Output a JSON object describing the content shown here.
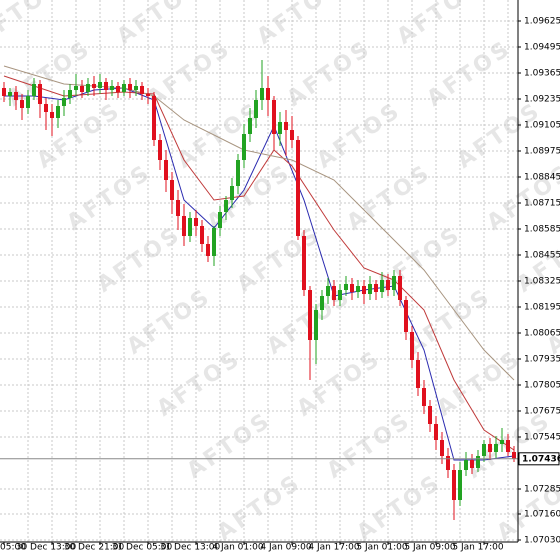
{
  "chart_data": {
    "type": "candlestick",
    "categories": [
      "05:00",
      null,
      null,
      null,
      null,
      null,
      null,
      null,
      "30 Dec 13:00",
      null,
      null,
      null,
      null,
      null,
      null,
      null,
      "30 Dec 21:00",
      null,
      null,
      null,
      null,
      null,
      null,
      null,
      "31 Dec 05:00",
      null,
      null,
      null,
      null,
      null,
      null,
      null,
      "31 Dec 13:00",
      null,
      null,
      null,
      null,
      null,
      null,
      null,
      "4 Jan 01:00",
      null,
      null,
      null,
      null,
      null,
      null,
      null,
      "4 Jan 09:00",
      null,
      null,
      null,
      null,
      null,
      null,
      null,
      "4 Jan 17:00",
      null,
      null,
      null,
      null,
      null,
      null,
      null,
      "5 Jan 01:00",
      null,
      null,
      null,
      null,
      null,
      null,
      null,
      "5 Jan 09:00",
      null,
      null,
      null,
      null,
      null,
      null,
      null,
      "5 Jan 17:00",
      null,
      null,
      null,
      null,
      null
    ],
    "open": [
      1.0929,
      1.0925,
      1.0927,
      1.0923,
      1.0919,
      1.0925,
      1.0931,
      1.0921,
      1.0917,
      1.0914,
      1.092,
      1.0924,
      1.0928,
      1.093,
      1.0927,
      1.0931,
      1.0929,
      1.0932,
      1.0928,
      1.093,
      1.0927,
      1.0931,
      1.0928,
      1.093,
      1.0926,
      1.0925,
      1.0903,
      1.0893,
      1.0883,
      1.0873,
      1.0865,
      1.0855,
      1.0864,
      1.086,
      1.0851,
      1.0845,
      1.0859,
      1.0867,
      1.0873,
      1.088,
      1.0893,
      1.0906,
      1.0914,
      1.0923,
      1.0929,
      1.0923,
      1.0906,
      1.0912,
      1.0908,
      1.0903,
      1.0855,
      1.0828,
      1.0803,
      1.0818,
      1.0825,
      1.083,
      1.0823,
      1.0828,
      1.0831,
      1.0827,
      1.083,
      1.0826,
      1.0831,
      1.0827,
      1.0833,
      1.0828,
      1.0835,
      1.0823,
      1.0807,
      1.0793,
      1.0779,
      1.077,
      1.0761,
      1.0753,
      1.0745,
      1.0738,
      1.0723,
      1.0738,
      1.0743,
      1.0739,
      1.0745,
      1.0751,
      1.0747,
      1.0751,
      1.0753,
      1.0747
    ],
    "high": [
      1.0932,
      1.0929,
      1.093,
      1.0926,
      1.0928,
      1.0934,
      1.0933,
      1.0924,
      1.0921,
      1.0923,
      1.0928,
      1.0931,
      1.0936,
      1.0933,
      1.0934,
      1.0935,
      1.0936,
      1.0934,
      1.0933,
      1.0932,
      1.0933,
      1.0934,
      1.0933,
      1.0932,
      1.0929,
      1.0927,
      1.0906,
      1.0898,
      1.0887,
      1.0878,
      1.0871,
      1.0867,
      1.0868,
      1.0863,
      1.0855,
      1.086,
      1.087,
      1.0875,
      1.0884,
      1.0896,
      1.0911,
      1.0919,
      1.0928,
      1.0943,
      1.0935,
      1.0925,
      1.0917,
      1.0918,
      1.0915,
      1.0905,
      1.0858,
      1.083,
      1.0821,
      1.0828,
      1.0834,
      1.0833,
      1.0831,
      1.0835,
      1.0834,
      1.0833,
      1.0833,
      1.0835,
      1.0833,
      1.0837,
      1.0836,
      1.0838,
      1.0838,
      1.0825,
      1.081,
      1.0797,
      1.0783,
      1.0773,
      1.0765,
      1.0757,
      1.0749,
      1.0741,
      1.0742,
      1.0747,
      1.0746,
      1.0748,
      1.0753,
      1.0754,
      1.0755,
      1.0759,
      1.0756,
      1.075
    ],
    "low": [
      1.0922,
      1.092,
      1.0918,
      1.0913,
      1.0916,
      1.0923,
      1.0914,
      1.0908,
      1.0905,
      1.0909,
      1.0915,
      1.0921,
      1.0925,
      1.0924,
      1.0925,
      1.0925,
      1.0926,
      1.0923,
      1.0925,
      1.0924,
      1.0925,
      1.0924,
      1.0925,
      1.0923,
      1.0921,
      1.09,
      1.0888,
      1.0877,
      1.0866,
      1.0858,
      1.085,
      1.0852,
      1.0855,
      1.0847,
      1.0842,
      1.084,
      1.0855,
      1.0863,
      1.0869,
      1.0876,
      1.0889,
      1.0902,
      1.0909,
      1.0918,
      1.0915,
      1.0898,
      1.09,
      1.0895,
      1.0899,
      1.0853,
      1.0825,
      1.0783,
      1.0791,
      1.0813,
      1.0821,
      1.082,
      1.082,
      1.0825,
      1.0823,
      1.0824,
      1.0821,
      1.0823,
      1.0823,
      1.0824,
      1.0825,
      1.0825,
      1.082,
      1.0803,
      1.0789,
      1.0775,
      1.0766,
      1.0757,
      1.0748,
      1.0741,
      1.0734,
      1.0713,
      1.072,
      1.0735,
      1.0736,
      1.0737,
      1.0742,
      1.0743,
      1.0744,
      1.0747,
      1.0745,
      1.0742
    ],
    "close": [
      1.0925,
      1.0927,
      1.0923,
      1.0919,
      1.0925,
      1.0931,
      1.0921,
      1.0917,
      1.0914,
      1.092,
      1.0924,
      1.0928,
      1.093,
      1.0927,
      1.0931,
      1.0929,
      1.0932,
      1.0928,
      1.093,
      1.0927,
      1.0931,
      1.0928,
      1.093,
      1.0926,
      1.0925,
      1.0903,
      1.0893,
      1.0883,
      1.0873,
      1.0865,
      1.0855,
      1.0864,
      1.086,
      1.0851,
      1.0845,
      1.0859,
      1.0867,
      1.0873,
      1.088,
      1.0893,
      1.0906,
      1.0914,
      1.0923,
      1.0929,
      1.0923,
      1.0906,
      1.0912,
      1.0908,
      1.0903,
      1.0855,
      1.0828,
      1.0803,
      1.0818,
      1.0825,
      1.083,
      1.0823,
      1.0828,
      1.0831,
      1.0827,
      1.083,
      1.0826,
      1.0831,
      1.0827,
      1.0833,
      1.0828,
      1.0835,
      1.0823,
      1.0807,
      1.0793,
      1.0779,
      1.077,
      1.0761,
      1.0753,
      1.0745,
      1.0738,
      1.0723,
      1.0738,
      1.0743,
      1.0739,
      1.0745,
      1.0751,
      1.0747,
      1.0751,
      1.0753,
      1.0747,
      1.07436
    ],
    "up_color": "#22a322",
    "down_color": "#e0101e",
    "lines": [
      {
        "color": "#2b2bb0",
        "x": [
          0,
          5,
          10,
          15,
          20,
          25,
          30,
          35,
          40,
          45,
          50,
          55,
          60,
          65,
          70,
          75,
          80,
          85
        ],
        "values": [
          1.0925,
          1.0925,
          1.0923,
          1.0928,
          1.0929,
          1.0923,
          1.0873,
          1.0859,
          1.0878,
          1.091,
          1.0873,
          1.0825,
          1.0828,
          1.083,
          1.0798,
          1.0743,
          1.0743,
          1.0745
        ]
      },
      {
        "color": "#c03a3a",
        "x": [
          0,
          10,
          20,
          25,
          30,
          35,
          40,
          45,
          48,
          55,
          60,
          65,
          70,
          75,
          80,
          85
        ],
        "values": [
          1.0935,
          1.0925,
          1.0927,
          1.0926,
          1.0893,
          1.0873,
          1.0875,
          1.0898,
          1.089,
          1.0858,
          1.0839,
          1.0833,
          1.0818,
          1.0783,
          1.0758,
          1.0748
        ]
      },
      {
        "color": "#a89580",
        "x": [
          0,
          10,
          20,
          25,
          30,
          40,
          48,
          55,
          60,
          65,
          70,
          75,
          80,
          85
        ],
        "values": [
          1.094,
          1.0931,
          1.0929,
          1.0925,
          1.0913,
          1.0898,
          1.0893,
          1.0883,
          1.0868,
          1.0853,
          1.0838,
          1.0818,
          1.0798,
          1.0783
        ]
      }
    ],
    "ylim": [
      1.0702,
      1.0973
    ],
    "yticks": [
      1.09625,
      1.09495,
      1.09365,
      1.09235,
      1.09105,
      1.08975,
      1.08845,
      1.08715,
      1.08585,
      1.08455,
      1.08325,
      1.08195,
      1.08065,
      1.07935,
      1.07805,
      1.07675,
      1.07545,
      1.07285,
      {
        "value": 1.0716,
        "label": "1.07160"
      },
      {
        "value": 1.0703,
        "label": "1.07030"
      }
    ],
    "grid": true,
    "current_price": 1.07436,
    "watermark": "AFTOS"
  }
}
